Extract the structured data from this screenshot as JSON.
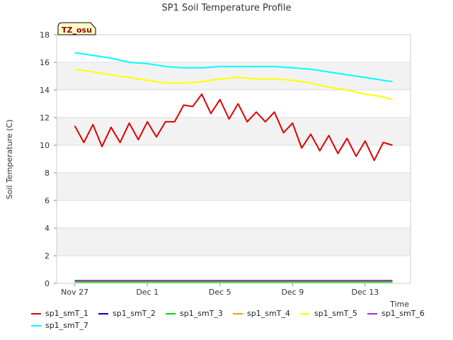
{
  "chart_data": {
    "type": "line",
    "title": "SP1 Soil Temperature Profile",
    "xlabel": "Time",
    "ylabel": "Soil Temperature (C)",
    "site_label": "TZ_osu",
    "xlim": [
      "Nov 26, 2024 00:00",
      "Dec 15, 2024 12:00"
    ],
    "ylim": [
      0,
      18
    ],
    "x_ticks": [
      "Nov 27",
      "Dec 1",
      "Dec 5",
      "Dec 9",
      "Dec 13"
    ],
    "y_ticks": [
      0,
      2,
      4,
      6,
      8,
      10,
      12,
      14,
      16,
      18
    ],
    "grid": true,
    "legend_position": "bottom",
    "series": [
      {
        "name": "sp1_smT_1",
        "color": "#dd0000",
        "x": [
          "Nov 27 00:00",
          "Nov 27 12:00",
          "Nov 28 00:00",
          "Nov 28 12:00",
          "Nov 29 00:00",
          "Nov 29 12:00",
          "Nov 30 00:00",
          "Nov 30 12:00",
          "Dec 1 00:00",
          "Dec 1 12:00",
          "Dec 2 00:00",
          "Dec 2 12:00",
          "Dec 3 00:00",
          "Dec 3 12:00",
          "Dec 4 00:00",
          "Dec 4 12:00",
          "Dec 5 00:00",
          "Dec 5 12:00",
          "Dec 6 00:00",
          "Dec 6 12:00",
          "Dec 7 00:00",
          "Dec 7 12:00",
          "Dec 8 00:00",
          "Dec 8 12:00",
          "Dec 9 00:00",
          "Dec 9 12:00",
          "Dec 10 00:00",
          "Dec 10 12:00",
          "Dec 11 00:00",
          "Dec 11 12:00",
          "Dec 12 00:00",
          "Dec 12 12:00",
          "Dec 13 00:00",
          "Dec 13 12:00",
          "Dec 14 00:00",
          "Dec 14 12:00"
        ],
        "y": [
          11.4,
          10.2,
          11.5,
          9.9,
          11.3,
          10.2,
          11.6,
          10.4,
          11.7,
          10.6,
          11.7,
          11.7,
          12.9,
          12.8,
          13.7,
          12.3,
          13.3,
          11.9,
          13.0,
          11.7,
          12.4,
          11.7,
          12.4,
          10.9,
          11.6,
          9.8,
          10.8,
          9.6,
          10.7,
          9.4,
          10.5,
          9.2,
          10.3,
          8.9,
          10.2,
          10.0
        ]
      },
      {
        "name": "sp1_smT_2",
        "color": "#0000cc",
        "x": [
          "Nov 27 00:00",
          "Dec 14 12:00"
        ],
        "y": [
          0.2,
          0.2
        ]
      },
      {
        "name": "sp1_smT_3",
        "color": "#00dd00",
        "x": [
          "Nov 27 00:00",
          "Dec 14 12:00"
        ],
        "y": [
          0.1,
          0.1
        ]
      },
      {
        "name": "sp1_smT_4",
        "color": "#ff9900",
        "x": [
          "Nov 27 00:00",
          "Dec 14 12:00"
        ],
        "y": [
          0.2,
          0.2
        ]
      },
      {
        "name": "sp1_smT_5",
        "color": "#ffff00",
        "x": [
          "Nov 27 00:00",
          "Nov 28 00:00",
          "Nov 29 00:00",
          "Nov 30 00:00",
          "Dec 1 00:00",
          "Dec 2 00:00",
          "Dec 3 00:00",
          "Dec 4 00:00",
          "Dec 5 00:00",
          "Dec 6 00:00",
          "Dec 7 00:00",
          "Dec 8 00:00",
          "Dec 9 00:00",
          "Dec 10 00:00",
          "Dec 11 00:00",
          "Dec 12 00:00",
          "Dec 13 00:00",
          "Dec 14 00:00",
          "Dec 14 12:00"
        ],
        "y": [
          15.5,
          15.3,
          15.1,
          14.9,
          14.7,
          14.5,
          14.5,
          14.6,
          14.8,
          14.9,
          14.8,
          14.8,
          14.7,
          14.5,
          14.2,
          14.0,
          13.7,
          13.5,
          13.3
        ]
      },
      {
        "name": "sp1_smT_6",
        "color": "#9933cc",
        "x": [
          "Nov 27 00:00",
          "Dec 14 12:00"
        ],
        "y": [
          0.2,
          0.2
        ]
      },
      {
        "name": "sp1_smT_7",
        "color": "#00ffff",
        "x": [
          "Nov 27 00:00",
          "Nov 28 00:00",
          "Nov 29 00:00",
          "Nov 30 00:00",
          "Dec 1 00:00",
          "Dec 2 00:00",
          "Dec 3 00:00",
          "Dec 4 00:00",
          "Dec 5 00:00",
          "Dec 6 00:00",
          "Dec 7 00:00",
          "Dec 8 00:00",
          "Dec 9 00:00",
          "Dec 10 00:00",
          "Dec 11 00:00",
          "Dec 12 00:00",
          "Dec 13 00:00",
          "Dec 14 00:00",
          "Dec 14 12:00"
        ],
        "y": [
          16.7,
          16.5,
          16.3,
          16.0,
          15.9,
          15.7,
          15.6,
          15.6,
          15.7,
          15.7,
          15.7,
          15.7,
          15.6,
          15.5,
          15.3,
          15.1,
          14.9,
          14.7,
          14.6
        ]
      }
    ]
  }
}
